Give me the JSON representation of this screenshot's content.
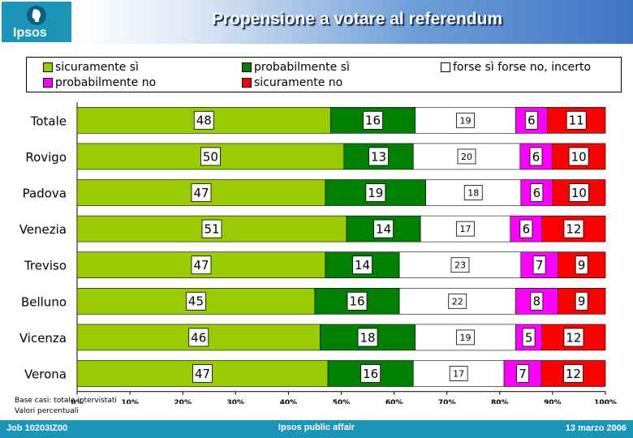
{
  "header": {
    "logo_text": "Ipsos",
    "title": "Propensione a votare al referendum"
  },
  "colors": {
    "sicuramente_si": "#99cc00",
    "probabilmente_si": "#008000",
    "incerto": "#ffffff",
    "probabilmente_no": "#ff00ff",
    "sicuramente_no": "#ff0000"
  },
  "chart_data": {
    "type": "bar",
    "orientation": "horizontal",
    "stacked": "percent",
    "categories": [
      "Totale",
      "Rovigo",
      "Padova",
      "Venezia",
      "Treviso",
      "Belluno",
      "Vicenza",
      "Verona"
    ],
    "series": [
      {
        "name": "sicuramente sì",
        "values": [
          48,
          50,
          47,
          51,
          47,
          45,
          46,
          47
        ]
      },
      {
        "name": "probabilmente sì",
        "values": [
          16,
          13,
          19,
          14,
          14,
          16,
          18,
          16
        ]
      },
      {
        "name": "forse sì forse no, incerto",
        "values": [
          19,
          20,
          18,
          17,
          23,
          22,
          19,
          17
        ]
      },
      {
        "name": "probabilmente no",
        "values": [
          6,
          6,
          6,
          6,
          7,
          8,
          5,
          7
        ]
      },
      {
        "name": "sicuramente no",
        "values": [
          11,
          10,
          10,
          12,
          9,
          9,
          12,
          12
        ]
      }
    ],
    "x_ticks": [
      "0%",
      "10%",
      "20%",
      "30%",
      "40%",
      "50%",
      "60%",
      "70%",
      "80%",
      "90%",
      "100%"
    ],
    "xlim": [
      0,
      100
    ],
    "legend_position": "top"
  },
  "footnote": {
    "line1": "Base casi: totale intervistati",
    "line2": "Valori percentuali"
  },
  "footer": {
    "left": "Job 10203IZ00",
    "center": "Ipsos public affair",
    "right": "13 marzo 2006"
  }
}
